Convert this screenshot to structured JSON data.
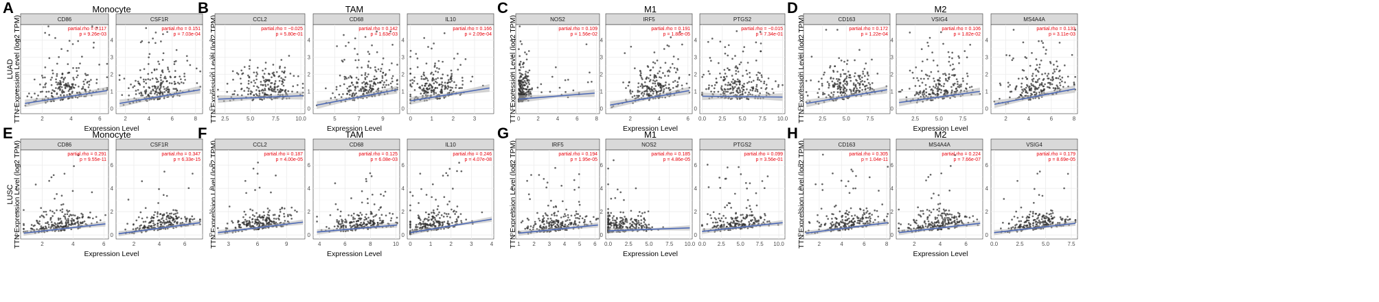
{
  "figure": {
    "rows": [
      {
        "label": "LUAD"
      },
      {
        "label": "LUSC"
      }
    ],
    "y_axis_title": "TTN Expression Level (log2 TPM)",
    "x_axis_title": "Expression Level",
    "groups": [
      {
        "letter": "A",
        "title": "Monocyte",
        "row": 0
      },
      {
        "letter": "B",
        "title": "TAM",
        "row": 0
      },
      {
        "letter": "C",
        "title": "M1",
        "row": 0
      },
      {
        "letter": "D",
        "title": "M2",
        "row": 0
      },
      {
        "letter": "E",
        "title": "Monocyte",
        "row": 1
      },
      {
        "letter": "F",
        "title": "TAM",
        "row": 1
      },
      {
        "letter": "G",
        "title": "M1",
        "row": 1
      },
      {
        "letter": "H",
        "title": "M2",
        "row": 1
      }
    ],
    "colors": {
      "points": "#333333",
      "fit_line": "#4a67b5",
      "ci_band": "#b3b3b3",
      "strip_bg": "#d9d9d9",
      "grid": "#ebebeb",
      "stat_text": "#e8000b"
    }
  },
  "chart_data": [
    {
      "type": "scatter",
      "group": "A",
      "row": "LUAD",
      "gene": "CD86",
      "rho_label": "partial.rho = 0.117",
      "p_label": "p = 9.26e-03",
      "xlim": [
        0.5,
        6.6
      ],
      "xticks": [
        "2",
        "4",
        "6"
      ],
      "xtick_vals": [
        2,
        4,
        6
      ],
      "ylim": [
        -0.3,
        4.9
      ],
      "yticks": [
        "0",
        "1",
        "2",
        "3",
        "4"
      ],
      "ytick_vals": [
        0,
        1,
        2,
        3,
        4
      ],
      "fit": [
        [
          0.8,
          0.3
        ],
        [
          6.5,
          1.05
        ]
      ],
      "cloud": {
        "xmin": 0.8,
        "xmax": 6.5,
        "xcenter": 3.6,
        "ymax": 4.8
      }
    },
    {
      "type": "scatter",
      "group": "A",
      "row": "LUAD",
      "gene": "CSF1R",
      "rho_label": "partial.rho = 0.151",
      "p_label": "p = 7.03e-04",
      "xlim": [
        1.2,
        8.6
      ],
      "xticks": [
        "2",
        "4",
        "6",
        "8"
      ],
      "xtick_vals": [
        2,
        4,
        6,
        8
      ],
      "ylim": [
        -0.3,
        4.9
      ],
      "yticks": [
        "0",
        "1",
        "2",
        "3",
        "4"
      ],
      "ytick_vals": [
        0,
        1,
        2,
        3,
        4
      ],
      "fit": [
        [
          1.5,
          0.3
        ],
        [
          8.4,
          1.1
        ]
      ],
      "cloud": {
        "xmin": 1.5,
        "xmax": 8.4,
        "xcenter": 4.8,
        "ymax": 4.7
      }
    },
    {
      "type": "scatter",
      "group": "B",
      "row": "LUAD",
      "gene": "CCL2",
      "rho_label": "partial.rho = −0.025",
      "p_label": "p = 5.80e-01",
      "xlim": [
        1.5,
        10.4
      ],
      "xticks": [
        "2.5",
        "5.0",
        "7.5",
        "10.0"
      ],
      "xtick_vals": [
        2.5,
        5,
        7.5,
        10
      ],
      "ylim": [
        -0.3,
        4.9
      ],
      "yticks": [
        "0",
        "1",
        "2",
        "3",
        "4"
      ],
      "ytick_vals": [
        0,
        1,
        2,
        3,
        4
      ],
      "fit": [
        [
          1.8,
          0.55
        ],
        [
          10.2,
          0.75
        ]
      ],
      "cloud": {
        "xmin": 1.8,
        "xmax": 10.2,
        "xcenter": 6.5,
        "ymax": 4.6
      }
    },
    {
      "type": "scatter",
      "group": "B",
      "row": "LUAD",
      "gene": "CD68",
      "rho_label": "partial.rho = 0.142",
      "p_label": "p = 1.63e-03",
      "xlim": [
        3.2,
        10.4
      ],
      "xticks": [
        "5",
        "7",
        "9"
      ],
      "xtick_vals": [
        5,
        7,
        9
      ],
      "ylim": [
        -0.3,
        4.9
      ],
      "yticks": [
        "0",
        "1",
        "2",
        "3",
        "4"
      ],
      "ytick_vals": [
        0,
        1,
        2,
        3,
        4
      ],
      "fit": [
        [
          3.5,
          0.2
        ],
        [
          10.2,
          1.1
        ]
      ],
      "cloud": {
        "xmin": 3.5,
        "xmax": 10.2,
        "xcenter": 7.5,
        "ymax": 4.5
      }
    },
    {
      "type": "scatter",
      "group": "B",
      "row": "LUAD",
      "gene": "IL10",
      "rho_label": "partial.rho = 0.166",
      "p_label": "p = 2.09e-04",
      "xlim": [
        -0.15,
        3.9
      ],
      "xticks": [
        "0",
        "1",
        "2",
        "3"
      ],
      "xtick_vals": [
        0,
        1,
        2,
        3
      ],
      "ylim": [
        -0.3,
        4.9
      ],
      "yticks": [
        "0",
        "1",
        "2",
        "3",
        "4"
      ],
      "ytick_vals": [
        0,
        1,
        2,
        3,
        4
      ],
      "fit": [
        [
          0,
          0.45
        ],
        [
          3.7,
          1.2
        ]
      ],
      "cloud": {
        "xmin": 0,
        "xmax": 3.7,
        "xcenter": 1.2,
        "ymax": 4.4
      }
    },
    {
      "type": "scatter",
      "group": "C",
      "row": "LUAD",
      "gene": "NOS2",
      "rho_label": "partial.rho = 0.109",
      "p_label": "p = 1.56e-02",
      "xlim": [
        -0.3,
        8.3
      ],
      "xticks": [
        "0",
        "2",
        "4",
        "6",
        "8"
      ],
      "xtick_vals": [
        0,
        2,
        4,
        6,
        8
      ],
      "ylim": [
        -0.3,
        4.9
      ],
      "yticks": [
        "0",
        "1",
        "2",
        "3",
        "4"
      ],
      "ytick_vals": [
        0,
        1,
        2,
        3,
        4
      ],
      "fit": [
        [
          0,
          0.55
        ],
        [
          7.8,
          0.9
        ]
      ],
      "cloud": {
        "xmin": 0,
        "xmax": 7.8,
        "xcenter": 0.6,
        "ymax": 4.8
      }
    },
    {
      "type": "scatter",
      "group": "C",
      "row": "LUAD",
      "gene": "IRF5",
      "rho_label": "partial.rho = 0.191",
      "p_label": "p = 1.88e-05",
      "xlim": [
        0.3,
        6.3
      ],
      "xticks": [
        "2",
        "4",
        "6"
      ],
      "xtick_vals": [
        2,
        4,
        6
      ],
      "ylim": [
        -0.3,
        4.9
      ],
      "yticks": [
        "0",
        "1",
        "2",
        "3",
        "4"
      ],
      "ytick_vals": [
        0,
        1,
        2,
        3,
        4
      ],
      "fit": [
        [
          0.6,
          0.2
        ],
        [
          6.1,
          1.05
        ]
      ],
      "cloud": {
        "xmin": 0.6,
        "xmax": 6.1,
        "xcenter": 3.8,
        "ymax": 4.5
      }
    },
    {
      "type": "scatter",
      "group": "C",
      "row": "LUAD",
      "gene": "PTGS2",
      "rho_label": "partial.rho = −0.015",
      "p_label": "p = 7.34e-01",
      "xlim": [
        -0.3,
        10.3
      ],
      "xticks": [
        "0.0",
        "2.5",
        "5.0",
        "7.5",
        "10.0"
      ],
      "xtick_vals": [
        0,
        2.5,
        5,
        7.5,
        10
      ],
      "ylim": [
        -0.3,
        4.9
      ],
      "yticks": [
        "0",
        "1",
        "2",
        "3",
        "4"
      ],
      "ytick_vals": [
        0,
        1,
        2,
        3,
        4
      ],
      "fit": [
        [
          0,
          0.72
        ],
        [
          10,
          0.67
        ]
      ],
      "cloud": {
        "xmin": 0,
        "xmax": 10,
        "xcenter": 4.5,
        "ymax": 4.8
      }
    },
    {
      "type": "scatter",
      "group": "D",
      "row": "LUAD",
      "gene": "CD163",
      "rho_label": "partial.rho = 0.172",
      "p_label": "p = 1.22e-04",
      "xlim": [
        0.5,
        9.6
      ],
      "xticks": [
        "2.5",
        "5.0",
        "7.5"
      ],
      "xtick_vals": [
        2.5,
        5,
        7.5
      ],
      "ylim": [
        -0.3,
        4.9
      ],
      "yticks": [
        "0",
        "1",
        "2",
        "3",
        "4"
      ],
      "ytick_vals": [
        0,
        1,
        2,
        3,
        4
      ],
      "fit": [
        [
          0.8,
          0.3
        ],
        [
          9.3,
          1.1
        ]
      ],
      "cloud": {
        "xmin": 0.8,
        "xmax": 9.3,
        "xcenter": 5.2,
        "ymax": 4.6
      }
    },
    {
      "type": "scatter",
      "group": "D",
      "row": "LUAD",
      "gene": "VSIG4",
      "rho_label": "partial.rho = 0.106",
      "p_label": "p = 1.82e-02",
      "xlim": [
        0.5,
        9.6
      ],
      "xticks": [
        "2.5",
        "5.0",
        "7.5"
      ],
      "xtick_vals": [
        2.5,
        5,
        7.5
      ],
      "ylim": [
        -0.3,
        4.9
      ],
      "yticks": [
        "0",
        "1",
        "2",
        "3",
        "4"
      ],
      "ytick_vals": [
        0,
        1,
        2,
        3,
        4
      ],
      "fit": [
        [
          0.8,
          0.35
        ],
        [
          9.3,
          1.0
        ]
      ],
      "cloud": {
        "xmin": 0.8,
        "xmax": 9.3,
        "xcenter": 5.0,
        "ymax": 4.6
      }
    },
    {
      "type": "scatter",
      "group": "D",
      "row": "LUAD",
      "gene": "MS4A4A",
      "rho_label": "partial.rho = 0.133",
      "p_label": "p = 3.11e-03",
      "xlim": [
        0.7,
        8.3
      ],
      "xticks": [
        "2",
        "4",
        "6",
        "8"
      ],
      "xtick_vals": [
        2,
        4,
        6,
        8
      ],
      "ylim": [
        -0.3,
        4.9
      ],
      "yticks": [
        "0",
        "1",
        "2",
        "3",
        "4"
      ],
      "ytick_vals": [
        0,
        1,
        2,
        3,
        4
      ],
      "fit": [
        [
          1.0,
          0.25
        ],
        [
          8.1,
          1.15
        ]
      ],
      "cloud": {
        "xmin": 1.0,
        "xmax": 8.1,
        "xcenter": 4.8,
        "ymax": 4.6
      }
    },
    {
      "type": "scatter",
      "group": "E",
      "row": "LUSC",
      "gene": "CD86",
      "rho_label": "partial.rho = 0.291",
      "p_label": "p = 9.55e-11",
      "xlim": [
        0.6,
        6.3
      ],
      "xticks": [
        "2",
        "4",
        "6"
      ],
      "xtick_vals": [
        2,
        4,
        6
      ],
      "ylim": [
        -0.35,
        7.3
      ],
      "yticks": [
        "0",
        "2",
        "4",
        "6"
      ],
      "ytick_vals": [
        0,
        2,
        4,
        6
      ],
      "fit": [
        [
          0.8,
          0.15
        ],
        [
          6.1,
          0.95
        ]
      ],
      "cloud": {
        "xmin": 0.8,
        "xmax": 6.1,
        "xcenter": 3.2,
        "ymax": 6.9
      }
    },
    {
      "type": "scatter",
      "group": "E",
      "row": "LUSC",
      "gene": "CSF1R",
      "rho_label": "partial.rho = 0.347",
      "p_label": "p = 6.33e-15",
      "xlim": [
        0.6,
        7.4
      ],
      "xticks": [
        "2",
        "4",
        "6"
      ],
      "xtick_vals": [
        2,
        4,
        6
      ],
      "ylim": [
        -0.35,
        7.3
      ],
      "yticks": [
        "0",
        "2",
        "4",
        "6"
      ],
      "ytick_vals": [
        0,
        2,
        4,
        6
      ],
      "fit": [
        [
          0.8,
          0.1
        ],
        [
          7.2,
          1.05
        ]
      ],
      "cloud": {
        "xmin": 0.8,
        "xmax": 7.2,
        "xcenter": 4.2,
        "ymax": 6.9
      }
    },
    {
      "type": "scatter",
      "group": "F",
      "row": "LUSC",
      "gene": "CCL2",
      "rho_label": "partial.rho = 0.187",
      "p_label": "p = 4.00e-05",
      "xlim": [
        1.6,
        10.9
      ],
      "xticks": [
        "3",
        "6",
        "9"
      ],
      "xtick_vals": [
        3,
        6,
        9
      ],
      "ylim": [
        -0.35,
        7.3
      ],
      "yticks": [
        "0",
        "2",
        "4",
        "6"
      ],
      "ytick_vals": [
        0,
        2,
        4,
        6
      ],
      "fit": [
        [
          1.9,
          0.2
        ],
        [
          10.7,
          1.1
        ]
      ],
      "cloud": {
        "xmin": 1.9,
        "xmax": 10.7,
        "xcenter": 6.0,
        "ymax": 6.9
      }
    },
    {
      "type": "scatter",
      "group": "F",
      "row": "LUSC",
      "gene": "CD68",
      "rho_label": "partial.rho = 0.125",
      "p_label": "p = 6.08e-03",
      "xlim": [
        3.5,
        10.3
      ],
      "xticks": [
        "4",
        "6",
        "8",
        "10"
      ],
      "xtick_vals": [
        4,
        6,
        8,
        10
      ],
      "ylim": [
        -0.35,
        7.3
      ],
      "yticks": [
        "0",
        "2",
        "4",
        "6"
      ],
      "ytick_vals": [
        0,
        2,
        4,
        6
      ],
      "fit": [
        [
          3.8,
          0.25
        ],
        [
          10.1,
          0.85
        ]
      ],
      "cloud": {
        "xmin": 3.8,
        "xmax": 10.1,
        "xcenter": 7.5,
        "ymax": 6.9
      }
    },
    {
      "type": "scatter",
      "group": "F",
      "row": "LUSC",
      "gene": "IL10",
      "rho_label": "partial.rho = 0.246",
      "p_label": "p = 4.07e-08",
      "xlim": [
        -0.15,
        4.1
      ],
      "xticks": [
        "0",
        "1",
        "2",
        "3",
        "4"
      ],
      "xtick_vals": [
        0,
        1,
        2,
        3,
        4
      ],
      "ylim": [
        -0.35,
        7.3
      ],
      "yticks": [
        "0",
        "2",
        "4",
        "6"
      ],
      "ytick_vals": [
        0,
        2,
        4,
        6
      ],
      "fit": [
        [
          0,
          0.2
        ],
        [
          4.0,
          1.35
        ]
      ],
      "cloud": {
        "xmin": 0,
        "xmax": 4.0,
        "xcenter": 1.2,
        "ymax": 6.9
      }
    },
    {
      "type": "scatter",
      "group": "G",
      "row": "LUSC",
      "gene": "IRF5",
      "rho_label": "partial.rho = 0.194",
      "p_label": "p = 1.95e-05",
      "xlim": [
        0.8,
        6.3
      ],
      "xticks": [
        "1",
        "2",
        "3",
        "4",
        "5",
        "6"
      ],
      "xtick_vals": [
        1,
        2,
        3,
        4,
        5,
        6
      ],
      "ylim": [
        -0.35,
        7.3
      ],
      "yticks": [
        "0",
        "2",
        "4",
        "6"
      ],
      "ytick_vals": [
        0,
        2,
        4,
        6
      ],
      "fit": [
        [
          1.0,
          0.15
        ],
        [
          6.2,
          0.85
        ]
      ],
      "cloud": {
        "xmin": 1.0,
        "xmax": 6.2,
        "xcenter": 3.5,
        "ymax": 6.8
      }
    },
    {
      "type": "scatter",
      "group": "G",
      "row": "LUSC",
      "gene": "NOS2",
      "rho_label": "partial.rho = 0.185",
      "p_label": "p = 4.86e-05",
      "xlim": [
        -0.3,
        10.3
      ],
      "xticks": [
        "0.0",
        "2.5",
        "5.0",
        "7.5",
        "10.0"
      ],
      "xtick_vals": [
        0,
        2.5,
        5,
        7.5,
        10
      ],
      "ylim": [
        -0.35,
        7.3
      ],
      "yticks": [
        "0",
        "2",
        "4",
        "6"
      ],
      "ytick_vals": [
        0,
        2,
        4,
        6
      ],
      "fit": [
        [
          0,
          0.35
        ],
        [
          10,
          0.6
        ]
      ],
      "cloud": {
        "xmin": 0,
        "xmax": 10,
        "xcenter": 2.0,
        "ymax": 6.9
      }
    },
    {
      "type": "scatter",
      "group": "G",
      "row": "LUSC",
      "gene": "PTGS2",
      "rho_label": "partial.rho = 0.099",
      "p_label": "p = 3.56e-01",
      "xlim": [
        -0.3,
        10.8
      ],
      "xticks": [
        "0.0",
        "2.5",
        "5.0",
        "7.5",
        "10.0"
      ],
      "xtick_vals": [
        0,
        2.5,
        5,
        7.5,
        10
      ],
      "ylim": [
        -0.35,
        7.3
      ],
      "yticks": [
        "0",
        "2",
        "4",
        "6"
      ],
      "ytick_vals": [
        0,
        2,
        4,
        6
      ],
      "fit": [
        [
          0,
          0.3
        ],
        [
          10.5,
          1.05
        ]
      ],
      "cloud": {
        "xmin": 0,
        "xmax": 10.5,
        "xcenter": 4.5,
        "ymax": 6.9
      }
    },
    {
      "type": "scatter",
      "group": "H",
      "row": "LUSC",
      "gene": "CD163",
      "rho_label": "partial.rho = 0.305",
      "p_label": "p = 1.04e-11",
      "xlim": [
        0.6,
        8.3
      ],
      "xticks": [
        "2",
        "4",
        "6",
        "8"
      ],
      "xtick_vals": [
        2,
        4,
        6,
        8
      ],
      "ylim": [
        -0.35,
        7.3
      ],
      "yticks": [
        "0",
        "2",
        "4",
        "6"
      ],
      "ytick_vals": [
        0,
        2,
        4,
        6
      ],
      "fit": [
        [
          0.8,
          0.15
        ],
        [
          8.1,
          1.05
        ]
      ],
      "cloud": {
        "xmin": 0.8,
        "xmax": 8.1,
        "xcenter": 4.5,
        "ymax": 6.9
      }
    },
    {
      "type": "scatter",
      "group": "H",
      "row": "LUSC",
      "gene": "MS4A4A",
      "rho_label": "partial.rho = 0.224",
      "p_label": "p = 7.66e-07",
      "xlim": [
        0.6,
        7.3
      ],
      "xticks": [
        "2",
        "4",
        "6"
      ],
      "xtick_vals": [
        2,
        4,
        6
      ],
      "ylim": [
        -0.35,
        7.3
      ],
      "yticks": [
        "0",
        "2",
        "4",
        "6"
      ],
      "ytick_vals": [
        0,
        2,
        4,
        6
      ],
      "fit": [
        [
          0.8,
          0.2
        ],
        [
          7.1,
          1.0
        ]
      ],
      "cloud": {
        "xmin": 0.8,
        "xmax": 7.1,
        "xcenter": 3.8,
        "ymax": 6.9
      }
    },
    {
      "type": "scatter",
      "group": "H",
      "row": "LUSC",
      "gene": "VSIG4",
      "rho_label": "partial.rho = 0.179",
      "p_label": "p = 8.69e-05",
      "xlim": [
        -0.3,
        8.1
      ],
      "xticks": [
        "0.0",
        "2.5",
        "5.0",
        "7.5"
      ],
      "xtick_vals": [
        0,
        2.5,
        5,
        7.5
      ],
      "ylim": [
        -0.35,
        7.3
      ],
      "yticks": [
        "0",
        "2",
        "4",
        "6"
      ],
      "ytick_vals": [
        0,
        2,
        4,
        6
      ],
      "fit": [
        [
          0,
          0.2
        ],
        [
          7.9,
          1.0
        ]
      ],
      "cloud": {
        "xmin": 0,
        "xmax": 7.9,
        "xcenter": 4.2,
        "ymax": 6.9
      }
    }
  ]
}
